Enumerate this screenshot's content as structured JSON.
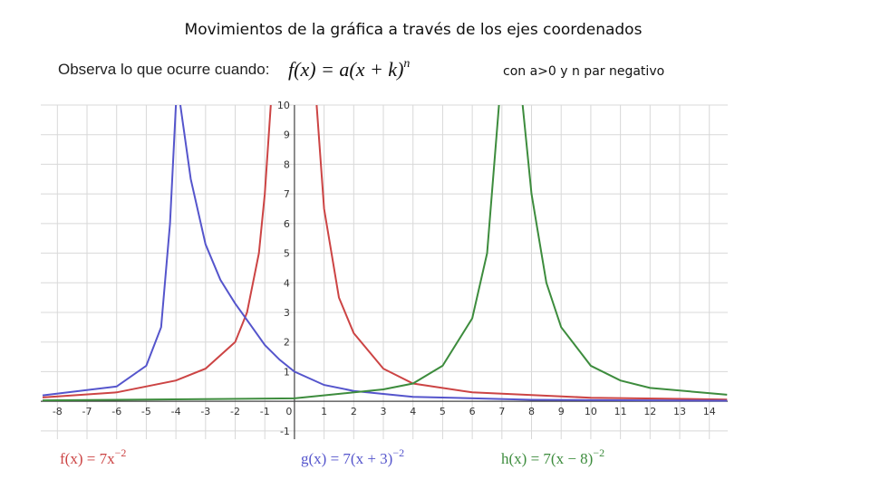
{
  "chart_data": {
    "type": "line",
    "title": "Movimientos de la gráfica a través de los ejes coordenados",
    "subtitle": "Observa lo que ocurre cuando:",
    "formula": "f(x) = a(x + k)",
    "formula_exponent": "n",
    "note": "con a>0 y n par negativo",
    "xlim": [
      -8.56,
      14.62
    ],
    "ylim": [
      -1.28,
      10
    ],
    "xticks": [
      -8,
      -7,
      -6,
      -5,
      -4,
      -3,
      -2,
      -1,
      0,
      1,
      2,
      3,
      4,
      5,
      6,
      7,
      8,
      9,
      10,
      11,
      12,
      13,
      14
    ],
    "yticks": [
      -1,
      1,
      2,
      3,
      4,
      5,
      6,
      7,
      8,
      9,
      10
    ],
    "grid": true,
    "series": [
      {
        "name": "f(x) = 7x",
        "name_exponent": "−2",
        "color": "#cc4444",
        "x": [
          -8.5,
          -6,
          -4,
          -3,
          -2,
          -1.6,
          -1.2,
          -1,
          -0.8,
          null,
          0.75,
          1,
          1.5,
          2,
          3,
          4,
          6,
          10,
          14.6
        ],
        "values": [
          0.13,
          0.3,
          0.7,
          1.1,
          2,
          3,
          5,
          7,
          10,
          null,
          10,
          6.5,
          3.5,
          2.3,
          1.1,
          0.6,
          0.3,
          0.12,
          0.06
        ]
      },
      {
        "name": "g(x) = 7(x + 3)",
        "name_exponent": "−2",
        "color": "#5555cc",
        "x": [
          -8.5,
          -6,
          -5,
          -4.5,
          -4.2,
          -4,
          null,
          -3.85,
          -3.5,
          -3,
          -2.5,
          -2,
          -1.5,
          -1,
          -0.5,
          0,
          1,
          2,
          4,
          8,
          14.6
        ],
        "values": [
          0.2,
          0.5,
          1.2,
          2.5,
          6,
          10,
          null,
          10,
          7.5,
          5.3,
          4.1,
          3.3,
          2.6,
          1.9,
          1.4,
          1,
          0.55,
          0.35,
          0.15,
          0.05,
          0.02
        ]
      },
      {
        "name": "h(x) = 7(x − 8)",
        "name_exponent": "−2",
        "color": "#3d8c3d",
        "x": [
          -8.5,
          0,
          3,
          4,
          5,
          6,
          6.5,
          6.9,
          null,
          7.7,
          8,
          8.5,
          9,
          10,
          11,
          12,
          14.6
        ],
        "values": [
          0.03,
          0.1,
          0.4,
          0.6,
          1.2,
          2.8,
          5,
          10,
          null,
          10,
          7,
          4,
          2.5,
          1.2,
          0.7,
          0.45,
          0.22
        ]
      }
    ]
  }
}
